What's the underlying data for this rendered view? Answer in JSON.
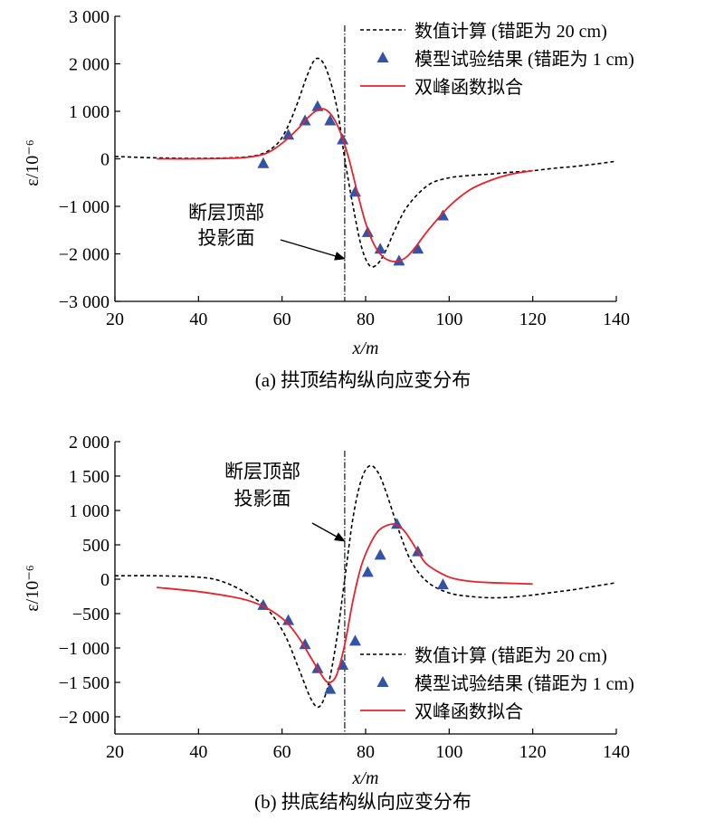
{
  "chart_data": [
    {
      "type": "line",
      "caption": "(a) 拱顶结构纵向应变分布",
      "xlabel": "x/m",
      "ylabel": "ε/10⁻⁶",
      "xlim": [
        20,
        140
      ],
      "ylim": [
        -3000,
        3000
      ],
      "x_ticks": [
        20,
        40,
        60,
        80,
        100,
        120,
        140
      ],
      "x_tick_labels": [
        "20",
        "40",
        "60",
        "80",
        "100",
        "120",
        "140"
      ],
      "y_ticks": [
        3000,
        2000,
        1000,
        0,
        -1000,
        -2000,
        -3000
      ],
      "y_tick_labels": [
        "3 000",
        "2 000",
        "1 000",
        "0",
        "−1 000",
        "−2 000",
        "−3 000"
      ],
      "legend_position": "top-right",
      "fault_line_x": 75,
      "annotation": {
        "lines": [
          "断层顶部",
          "投影面"
        ]
      },
      "series": [
        {
          "name": "数值计算 (错距为 20 cm)",
          "style": "dashed",
          "color": "#000000",
          "x": [
            20,
            30,
            40,
            50,
            55,
            58,
            60,
            62,
            64,
            66,
            68,
            70,
            72,
            73.5,
            75,
            77,
            79,
            81,
            83,
            85,
            87,
            90,
            95,
            100,
            105,
            110,
            115,
            120,
            125,
            130,
            135,
            140
          ],
          "y": [
            50,
            20,
            10,
            30,
            100,
            250,
            450,
            800,
            1250,
            1750,
            2100,
            2000,
            1500,
            900,
            0,
            -1000,
            -1850,
            -2250,
            -2200,
            -1900,
            -1500,
            -1000,
            -550,
            -400,
            -350,
            -320,
            -280,
            -250,
            -200,
            -160,
            -110,
            -50
          ]
        },
        {
          "name": "模型试验结果 (错距为 1 cm)",
          "style": "markers",
          "marker": "triangle",
          "color": "#3553a6",
          "x": [
            55.5,
            61.5,
            65.5,
            68.5,
            71.5,
            74.5,
            77.5,
            80.5,
            83.5,
            88,
            92.5,
            98.5
          ],
          "y": [
            -100,
            500,
            800,
            1100,
            800,
            400,
            -700,
            -1550,
            -1900,
            -2150,
            -1900,
            -1200
          ]
        },
        {
          "name": "双峰函数拟合",
          "style": "solid",
          "color": "#e8222a",
          "x": [
            30,
            40,
            50,
            55,
            58,
            61,
            64,
            66,
            68,
            70,
            72,
            74,
            76,
            78,
            80,
            82,
            84,
            86,
            88,
            90,
            92,
            95,
            100,
            105,
            110,
            115,
            120
          ],
          "y": [
            0,
            0,
            20,
            80,
            200,
            400,
            650,
            850,
            1000,
            1050,
            900,
            550,
            0,
            -700,
            -1350,
            -1800,
            -2050,
            -2150,
            -2150,
            -2050,
            -1850,
            -1500,
            -1000,
            -650,
            -450,
            -320,
            -250
          ]
        }
      ]
    },
    {
      "type": "line",
      "caption": "(b) 拱底结构纵向应变分布",
      "xlabel": "x/m",
      "ylabel": "ε/10⁻⁶",
      "xlim": [
        20,
        140
      ],
      "ylim": [
        -2250,
        2000
      ],
      "x_ticks": [
        20,
        40,
        60,
        80,
        100,
        120,
        140
      ],
      "x_tick_labels": [
        "20",
        "40",
        "60",
        "80",
        "100",
        "120",
        "140"
      ],
      "y_ticks": [
        2000,
        1500,
        1000,
        500,
        0,
        -500,
        -1000,
        -1500,
        -2000
      ],
      "y_tick_labels": [
        "2 000",
        "1 500",
        "1 000",
        "500",
        "0",
        "−500",
        "−1 000",
        "−1 500",
        "−2 000"
      ],
      "legend_position": "bottom-right",
      "fault_line_x": 75,
      "annotation": {
        "lines": [
          "断层顶部",
          "投影面"
        ]
      },
      "series": [
        {
          "name": "数值计算 (错距为 20 cm)",
          "style": "dashed",
          "color": "#000000",
          "x": [
            20,
            30,
            40,
            45,
            50,
            55,
            58,
            61,
            64,
            67,
            69,
            71,
            73,
            75,
            77,
            79,
            81,
            83,
            85,
            88,
            91,
            95,
            100,
            105,
            110,
            115,
            120,
            125,
            130,
            135,
            140
          ],
          "y": [
            50,
            50,
            30,
            -20,
            -150,
            -350,
            -550,
            -850,
            -1300,
            -1750,
            -1850,
            -1550,
            -900,
            0,
            900,
            1450,
            1650,
            1550,
            1250,
            700,
            250,
            -50,
            -200,
            -250,
            -270,
            -260,
            -230,
            -190,
            -150,
            -100,
            -50
          ]
        },
        {
          "name": "模型试验结果 (错距为 1 cm)",
          "style": "markers",
          "marker": "triangle",
          "color": "#3553a6",
          "x": [
            55.5,
            61.5,
            65.5,
            68.5,
            71.5,
            74.5,
            77.5,
            80.5,
            83.5,
            87.5,
            92.5,
            98.5
          ],
          "y": [
            -380,
            -600,
            -950,
            -1300,
            -1600,
            -1250,
            -900,
            100,
            350,
            800,
            400,
            -80
          ]
        },
        {
          "name": "双峰函数拟合",
          "style": "solid",
          "color": "#e8222a",
          "x": [
            30,
            40,
            50,
            55,
            58,
            61,
            64,
            67,
            69,
            71,
            73,
            75,
            77,
            79,
            81,
            83,
            85,
            87,
            89,
            91,
            93,
            95,
            100,
            105,
            110,
            115,
            120
          ],
          "y": [
            -120,
            -180,
            -280,
            -380,
            -480,
            -620,
            -850,
            -1150,
            -1350,
            -1500,
            -1400,
            -950,
            -300,
            200,
            500,
            700,
            780,
            800,
            720,
            550,
            350,
            200,
            30,
            -30,
            -50,
            -60,
            -70
          ]
        }
      ]
    }
  ]
}
